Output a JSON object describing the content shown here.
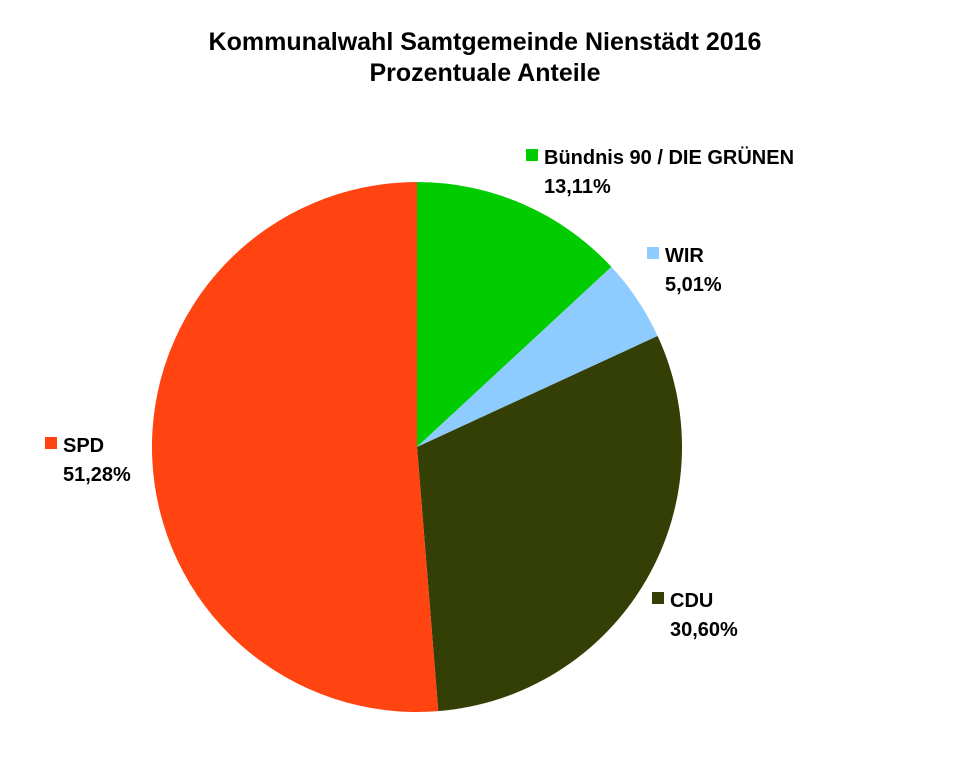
{
  "chart_data": {
    "type": "pie",
    "title": "Kommunalwahl Samtgemeinde Nienstädt 2016",
    "subtitle": "Prozentuale Anteile",
    "slices": [
      {
        "name": "Bündnis 90 / DIE GRÜNEN",
        "value": 13.11,
        "label": "13,11%",
        "color": "#00CC00"
      },
      {
        "name": "WIR",
        "value": 5.01,
        "label": "5,01%",
        "color": "#8ECCFF"
      },
      {
        "name": "CDU",
        "value": 30.6,
        "label": "30,60%",
        "color": "#333F05"
      },
      {
        "name": "SPD",
        "value": 51.28,
        "label": "51,28%",
        "color": "#FF4411"
      }
    ],
    "start_angle": "12 o'clock",
    "direction": "clockwise",
    "legend": "none",
    "data_labels": "outside, with colored markers"
  }
}
